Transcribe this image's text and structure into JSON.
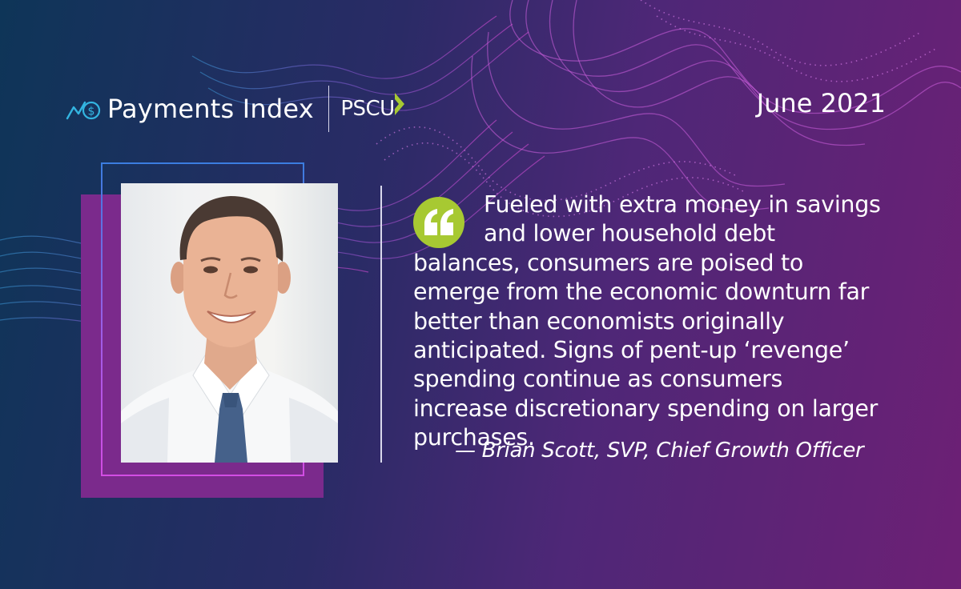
{
  "header": {
    "brand": "Payments Index",
    "partner": "PSCU",
    "date": "June 2021",
    "logo_icon": "trend-dollar-icon",
    "partner_icon": "chevron-right-icon"
  },
  "quote": {
    "icon": "quote-mark-icon",
    "text": "Fueled with extra money in savings and lower household debt balances, consumers are poised to emerge from the economic downturn far better than economists originally anticipated. Signs of pent-up ‘revenge’ spending continue as consumers increase discretionary spending on larger purchases.",
    "attribution": "— Brian Scott, SVP, Chief Growth Officer"
  },
  "portrait": {
    "icon": "person-portrait"
  },
  "colors": {
    "accent_green": "#a7c932",
    "frame_purple": "#7b2a8c",
    "background_dark": "#0e3558",
    "background_purple": "#6d2075"
  }
}
